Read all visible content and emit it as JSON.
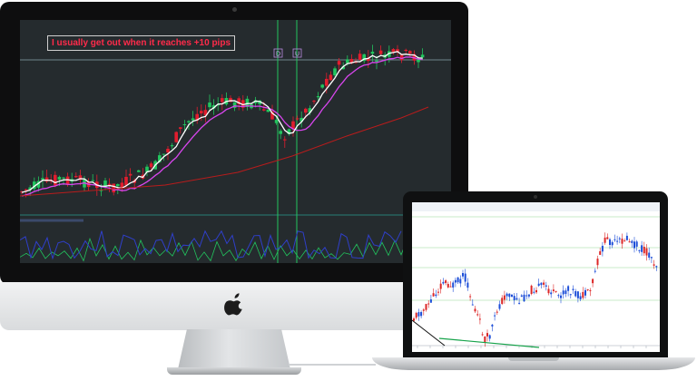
{
  "annotation": {
    "text": "I usually get out when it reaches +10 pips",
    "color": "#ff2b4a"
  },
  "imac_chart": {
    "background": "#252b2e",
    "bull_candle_color": "#22c55e",
    "bear_candle_color": "#e11d2e",
    "fast_ma_color": "#ffffff",
    "slow_ma_color": "#d946ef",
    "trend_ma_color": "#b91c1c",
    "signal_line_color": "#22c55e",
    "oscillator_color": "#2f3fc9",
    "oscillator_secondary_color": "#22c55e",
    "markers": [
      "D",
      "U"
    ]
  },
  "laptop_chart": {
    "background": "#ffffff",
    "bull_candle_color": "#1d4ed8",
    "bear_candle_color": "#dc2626",
    "grid_color": "#b7e4b7",
    "trendline_color": "#16a34a"
  },
  "icons": {
    "apple_logo": "apple-logo-icon"
  }
}
